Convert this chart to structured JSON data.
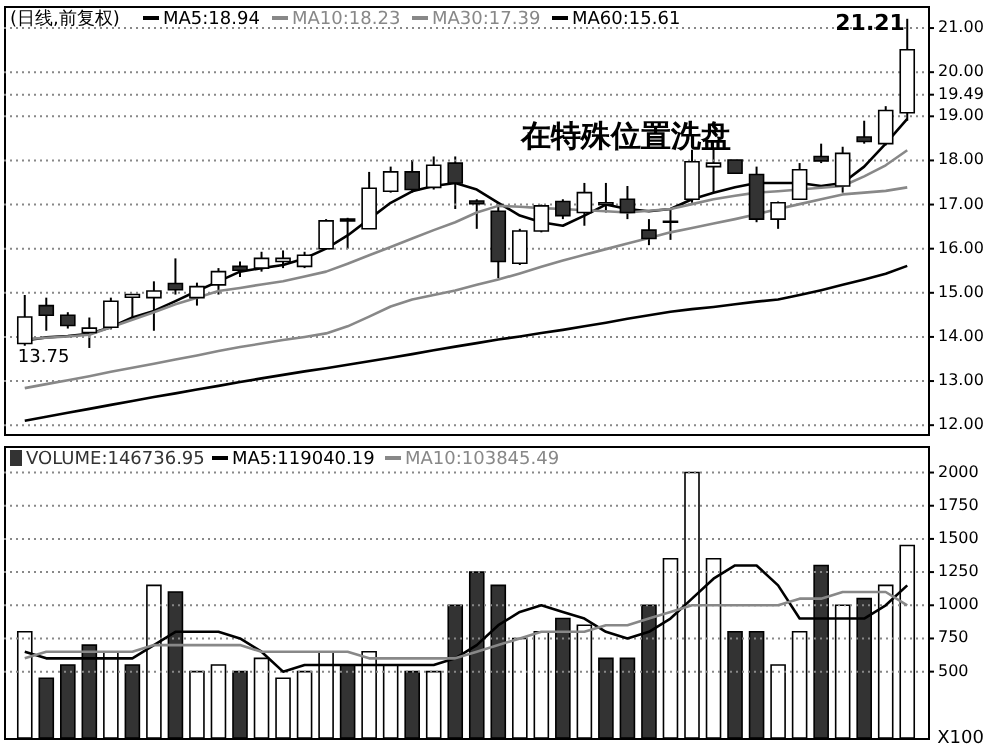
{
  "chart_data": [
    {
      "type": "candlestick",
      "title": "(日线,前复权)",
      "categories": [
        null,
        null,
        null,
        null,
        null,
        null,
        null,
        null,
        null,
        null,
        null,
        null,
        null,
        null,
        null,
        null,
        null,
        null,
        null,
        null,
        null,
        null,
        null,
        null,
        null,
        null,
        null,
        null,
        null,
        null,
        null,
        null,
        null,
        null,
        null,
        null,
        null,
        null,
        null,
        null,
        null,
        null
      ],
      "ohlc": [
        [
          13.85,
          14.95,
          13.8,
          14.45
        ],
        [
          14.71,
          14.89,
          14.14,
          14.49
        ],
        [
          14.49,
          14.56,
          14.19,
          14.26
        ],
        [
          14.1,
          14.44,
          13.75,
          14.2
        ],
        [
          14.22,
          14.89,
          14.17,
          14.81
        ],
        [
          14.9,
          14.96,
          14.44,
          14.96
        ],
        [
          14.89,
          15.26,
          14.14,
          15.04
        ],
        [
          15.21,
          15.78,
          14.96,
          15.07
        ],
        [
          14.89,
          15.23,
          14.71,
          15.14
        ],
        [
          15.18,
          15.56,
          14.96,
          15.48
        ],
        [
          15.6,
          15.71,
          15.36,
          15.51
        ],
        [
          15.56,
          15.93,
          15.48,
          15.78
        ],
        [
          15.71,
          15.96,
          15.56,
          15.78
        ],
        [
          15.6,
          15.93,
          15.56,
          15.85
        ],
        [
          16.0,
          16.67,
          16.0,
          16.63
        ],
        [
          16.63,
          16.7,
          16.0,
          16.67
        ],
        [
          16.45,
          17.74,
          16.45,
          17.37
        ],
        [
          17.3,
          17.86,
          17.27,
          17.74
        ],
        [
          17.74,
          18.01,
          17.27,
          17.34
        ],
        [
          17.39,
          18.09,
          17.34,
          17.89
        ],
        [
          17.94,
          18.09,
          16.9,
          17.49
        ],
        [
          17.08,
          17.12,
          16.45,
          17.02
        ],
        [
          16.85,
          16.97,
          15.33,
          15.71
        ],
        [
          15.67,
          16.45,
          15.63,
          16.4
        ],
        [
          16.4,
          17.0,
          16.37,
          16.97
        ],
        [
          17.07,
          17.12,
          16.67,
          16.75
        ],
        [
          16.82,
          17.49,
          16.52,
          17.27
        ],
        [
          17.0,
          17.49,
          16.82,
          17.04
        ],
        [
          17.12,
          17.42,
          16.67,
          16.82
        ],
        [
          16.42,
          16.67,
          16.08,
          16.23
        ],
        [
          16.6,
          16.9,
          16.2,
          16.62
        ],
        [
          17.12,
          18.24,
          17.04,
          17.97
        ],
        [
          17.86,
          18.28,
          17.27,
          17.94
        ],
        [
          18.01,
          18.01,
          17.71,
          17.71
        ],
        [
          17.68,
          17.86,
          16.6,
          16.67
        ],
        [
          16.67,
          17.07,
          16.45,
          17.04
        ],
        [
          17.12,
          17.94,
          17.12,
          17.79
        ],
        [
          18.09,
          18.38,
          17.94,
          17.99
        ],
        [
          17.42,
          18.31,
          17.27,
          18.16
        ],
        [
          18.53,
          18.9,
          18.38,
          18.43
        ],
        [
          18.38,
          19.23,
          18.34,
          19.13
        ],
        [
          19.08,
          21.21,
          18.9,
          20.51
        ]
      ],
      "series": [
        {
          "name": "MA5:18.94",
          "type": "line",
          "color": "#000000",
          "values": [
            13.92,
            13.99,
            14.02,
            14.07,
            14.22,
            14.44,
            14.59,
            14.81,
            15.04,
            15.26,
            15.48,
            15.56,
            15.63,
            15.78,
            16.0,
            16.3,
            16.67,
            17.04,
            17.3,
            17.42,
            17.49,
            17.34,
            17.04,
            16.75,
            16.6,
            16.52,
            16.75,
            17.0,
            16.9,
            16.85,
            16.9,
            17.12,
            17.27,
            17.39,
            17.49,
            17.49,
            17.49,
            17.42,
            17.49,
            17.86,
            18.38,
            18.94
          ]
        },
        {
          "name": "MA10:18.23",
          "type": "line",
          "color": "#888888",
          "values": [
            13.95,
            13.98,
            14.01,
            14.05,
            14.22,
            14.39,
            14.56,
            14.74,
            14.89,
            15.04,
            15.11,
            15.19,
            15.26,
            15.37,
            15.48,
            15.66,
            15.85,
            16.04,
            16.23,
            16.42,
            16.6,
            16.82,
            16.97,
            16.95,
            16.92,
            16.9,
            16.87,
            16.85,
            16.82,
            16.86,
            16.9,
            17.01,
            17.12,
            17.2,
            17.27,
            17.3,
            17.34,
            17.38,
            17.42,
            17.64,
            17.89,
            18.23
          ]
        },
        {
          "name": "MA30:17.39",
          "type": "line",
          "color": "#888888",
          "values": [
            12.84,
            12.93,
            13.02,
            13.11,
            13.21,
            13.3,
            13.39,
            13.49,
            13.58,
            13.68,
            13.77,
            13.85,
            13.93,
            14.0,
            14.08,
            14.24,
            14.46,
            14.69,
            14.85,
            14.95,
            15.05,
            15.18,
            15.3,
            15.44,
            15.59,
            15.73,
            15.86,
            15.99,
            16.12,
            16.24,
            16.37,
            16.47,
            16.57,
            16.67,
            16.78,
            16.9,
            17.01,
            17.12,
            17.23,
            17.27,
            17.31,
            17.39
          ]
        },
        {
          "name": "MA60:15.61",
          "type": "line",
          "color": "#000000",
          "values": [
            12.1,
            12.19,
            12.28,
            12.37,
            12.46,
            12.55,
            12.64,
            12.72,
            12.81,
            12.89,
            12.98,
            13.06,
            13.14,
            13.22,
            13.29,
            13.37,
            13.45,
            13.53,
            13.61,
            13.7,
            13.78,
            13.86,
            13.94,
            14.01,
            14.09,
            14.16,
            14.24,
            14.32,
            14.41,
            14.49,
            14.57,
            14.63,
            14.68,
            14.74,
            14.8,
            14.85,
            14.95,
            15.06,
            15.18,
            15.3,
            15.43,
            15.61
          ]
        }
      ],
      "ylim": [
        11.8,
        21.5
      ],
      "yticks": [
        {
          "value": 12,
          "label": "12.00"
        },
        {
          "value": 13,
          "label": "13.00"
        },
        {
          "value": 14,
          "label": "14.00"
        },
        {
          "value": 15,
          "label": "15.00"
        },
        {
          "value": 16,
          "label": "16.00"
        },
        {
          "value": 17,
          "label": "17.00"
        },
        {
          "value": 18,
          "label": "18.00"
        },
        {
          "value": 19,
          "label": "19.00"
        },
        {
          "value": 19.49,
          "label": "19.49"
        },
        {
          "value": 20,
          "label": "20.00"
        },
        {
          "value": 21,
          "label": "21.00"
        }
      ],
      "grid": "y",
      "legend": "top left",
      "tick_labels": "y",
      "annotations": [
        "在特殊位置洗盘",
        "21.21",
        "13.75"
      ]
    },
    {
      "type": "bar",
      "categories": [
        null,
        null,
        null,
        null,
        null,
        null,
        null,
        null,
        null,
        null,
        null,
        null,
        null,
        null,
        null,
        null,
        null,
        null,
        null,
        null,
        null,
        null,
        null,
        null,
        null,
        null,
        null,
        null,
        null,
        null,
        null,
        null,
        null,
        null,
        null,
        null,
        null,
        null,
        null,
        null,
        null,
        null
      ],
      "series": [
        {
          "name": "VOLUME:146736.95",
          "type": "bar",
          "values": [
            800,
            450,
            550,
            700,
            650,
            550,
            1150,
            1100,
            500,
            550,
            500,
            600,
            450,
            500,
            650,
            550,
            650,
            550,
            500,
            500,
            1000,
            1250,
            1150,
            750,
            800,
            900,
            850,
            600,
            600,
            1000,
            1350,
            2000,
            1350,
            800,
            800,
            550,
            800,
            1300,
            1000,
            1050,
            1150,
            1450
          ],
          "colors": [
            "#ffffff",
            "#333333",
            "#333333",
            "#333333",
            "#ffffff",
            "#333333",
            "#ffffff",
            "#333333",
            "#ffffff",
            "#ffffff",
            "#333333",
            "#ffffff",
            "#ffffff",
            "#ffffff",
            "#ffffff",
            "#333333",
            "#ffffff",
            "#ffffff",
            "#333333",
            "#ffffff",
            "#333333",
            "#333333",
            "#333333",
            "#ffffff",
            "#ffffff",
            "#333333",
            "#ffffff",
            "#333333",
            "#333333",
            "#333333",
            "#ffffff",
            "#ffffff",
            "#ffffff",
            "#333333",
            "#333333",
            "#ffffff",
            "#ffffff",
            "#333333",
            "#ffffff",
            "#333333",
            "#ffffff",
            "#ffffff"
          ]
        },
        {
          "name": "MA5:119040.19",
          "type": "line",
          "color": "#000000",
          "values": [
            650,
            600,
            600,
            600,
            600,
            600,
            700,
            800,
            800,
            800,
            750,
            650,
            500,
            550,
            550,
            550,
            550,
            550,
            550,
            550,
            600,
            700,
            850,
            950,
            1000,
            950,
            900,
            800,
            750,
            800,
            900,
            1050,
            1200,
            1300,
            1300,
            1150,
            900,
            900,
            900,
            900,
            1000,
            1150
          ]
        },
        {
          "name": "MA10:103845.49",
          "type": "line",
          "color": "#888888",
          "values": [
            600,
            650,
            650,
            650,
            650,
            650,
            700,
            700,
            700,
            700,
            700,
            650,
            650,
            650,
            650,
            650,
            600,
            600,
            600,
            600,
            600,
            650,
            700,
            750,
            800,
            800,
            800,
            850,
            850,
            900,
            950,
            1000,
            1000,
            1000,
            1000,
            1000,
            1050,
            1050,
            1100,
            1100,
            1100,
            1000
          ]
        }
      ],
      "ylim": [
        0,
        2200
      ],
      "yticks": [
        500,
        750,
        1000,
        1250,
        1500,
        1750,
        2000
      ],
      "grid": "y",
      "legend": "top left",
      "tick_labels": "y",
      "annotations": [
        "X100"
      ]
    }
  ]
}
